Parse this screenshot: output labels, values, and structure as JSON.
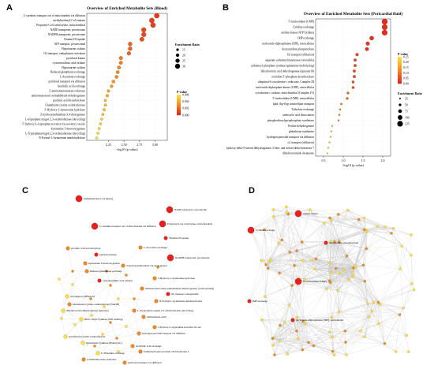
{
  "panels": {
    "a": "A",
    "b": "B",
    "c": "C",
    "d": "D"
  },
  "colors": {
    "high": "#ffe135",
    "mid": "#f08a1c",
    "low": "#e8201e",
    "edge": "#bfbfbf"
  },
  "chart_data": [
    {
      "type": "scatter",
      "panel": "A",
      "title": "Overview of Enriched Metabolite Sets (Blood)",
      "xlabel": "-log10 (p value)",
      "xlim": [
        1.9,
        3.2
      ],
      "xticks": [
        "2.25",
        "2.50",
        "2.75",
        "3.00"
      ],
      "xtick_values": [
        2.25,
        2.5,
        2.75,
        3.0
      ],
      "legend_size_title": "Enrichment Ratio",
      "legend_size_labels": [
        "15",
        "20",
        "25",
        "30"
      ],
      "legend_size_values": [
        15,
        20,
        25,
        30
      ],
      "legend_color_title": "P-value",
      "legend_color_labels": [
        "0.006",
        "0.004",
        "0.002",
        "0.000"
      ],
      "legend_placement": "right",
      "points": [
        {
          "label": "L-carnitine transport out of mitochondria via diffusion",
          "x": 3.03,
          "ratio": 32,
          "p": 0.0009
        },
        {
          "label": "methylmalonyl-CoA mutase",
          "x": 2.95,
          "ratio": 30,
          "p": 0.0011
        },
        {
          "label": "Propionyl-CoA carboxylase, mitochondrial",
          "x": 2.97,
          "ratio": 30,
          "p": 0.0011
        },
        {
          "label": "NADP transporter, peroxisome",
          "x": 2.82,
          "ratio": 28,
          "p": 0.0015
        },
        {
          "label": "NADPH transporter, peroxisome",
          "x": 2.82,
          "ratio": 28,
          "p": 0.0015
        },
        {
          "label": "Vitamin D3 uptake",
          "x": 2.79,
          "ratio": 26,
          "p": 0.0016
        },
        {
          "label": "ATP transport, peroxisomal",
          "x": 2.6,
          "ratio": 24,
          "p": 0.0025
        },
        {
          "label": "Hypotaurine oxidase",
          "x": 2.6,
          "ratio": 24,
          "p": 0.0025
        },
        {
          "label": "O2 transport, endoplasmic reticulum",
          "x": 2.58,
          "ratio": 23,
          "p": 0.0026
        },
        {
          "label": "pyridoxal kinase",
          "x": 2.45,
          "ratio": 22,
          "p": 0.0035
        },
        {
          "label": "cysteinesulfinic acid oxidase",
          "x": 2.45,
          "ratio": 21,
          "p": 0.0035
        },
        {
          "label": "Hypotaurine oxidase",
          "x": 2.42,
          "ratio": 21,
          "p": 0.0038
        },
        {
          "label": "Reduced glutathione exchange",
          "x": 2.4,
          "ratio": 20,
          "p": 0.004
        },
        {
          "label": "L-Ascorbate exchange",
          "x": 2.38,
          "ratio": 20,
          "p": 0.0042
        },
        {
          "label": "pyridoxal transport via diffusion",
          "x": 2.33,
          "ratio": 19,
          "p": 0.0047
        },
        {
          "label": "Arachidic acid exchange",
          "x": 2.3,
          "ratio": 18,
          "p": 0.005
        },
        {
          "label": "2'-aminomonomonate reductase",
          "x": 2.25,
          "ratio": 17,
          "p": 0.0056
        },
        {
          "label": "aminomonosonic-semialdehyde dehydrogenase",
          "x": 2.23,
          "ratio": 17,
          "p": 0.0058
        },
        {
          "label": "picolinic acid decarboxylase",
          "x": 2.2,
          "ratio": 16,
          "p": 0.0062
        },
        {
          "label": "Glutathione:cystine oxidoreductase",
          "x": 2.2,
          "ratio": 16,
          "p": 0.0062
        },
        {
          "label": "3'-Hydroxy-L-kynurenine hydrolase",
          "x": 2.18,
          "ratio": 16,
          "p": 0.0065
        },
        {
          "label": "3'-hydroxyanthranilate 3,4-dioxygenase",
          "x": 2.16,
          "ratio": 16,
          "p": 0.0068
        },
        {
          "label": "L-tryptophan:oxygen 2,3-oxidoreductase (decycling)",
          "x": 2.14,
          "ratio": 15,
          "p": 0.007
        },
        {
          "label": "5'-hydroxy-L-tryptophan secretion via secretory vesicle",
          "x": 2.12,
          "ratio": 15,
          "p": 0.0072
        },
        {
          "label": "kynurenine 3-monooxygenase",
          "x": 2.1,
          "ratio": 15,
          "p": 0.0075
        },
        {
          "label": "L-Tryptophanoxygen 2,3-oxidoreductase (decycling)",
          "x": 2.08,
          "ratio": 15,
          "p": 0.0078
        },
        {
          "label": "N-Formyl-L-kynurenine amidohydrolase",
          "x": 2.06,
          "ratio": 15,
          "p": 0.008
        }
      ]
    },
    {
      "type": "scatter",
      "panel": "B",
      "title": "Overview of Enriched Metabolite Sets (Pericardial fluid)",
      "xlabel": "-log10 (p value)",
      "xlim": [
        0.3,
        2.2
      ],
      "xticks": [
        "0.5",
        "1.0",
        "1.5",
        "2.0"
      ],
      "xtick_values": [
        0.5,
        1.0,
        1.5,
        2.0
      ],
      "legend_color_title": "P-value",
      "legend_color_labels": [
        "0.25",
        "0.20",
        "0.15",
        "0.10",
        "0.05",
        "0.00"
      ],
      "legend_size_title": "Enrichment Ratio",
      "legend_size_labels": [
        "25",
        "50",
        "75",
        "100",
        "125"
      ],
      "legend_size_values": [
        25,
        50,
        75,
        100,
        125
      ],
      "legend_placement": "right",
      "points": [
        {
          "label": "5'-nucleotidase (CMP)",
          "x": 2.05,
          "ratio": 125,
          "p": 0.009
        },
        {
          "label": "Cytidine exchange",
          "x": 2.05,
          "ratio": 120,
          "p": 0.009
        },
        {
          "label": "uridine kinase (ATP:Uridine)",
          "x": 2.05,
          "ratio": 120,
          "p": 0.009
        },
        {
          "label": "IMP exchange",
          "x": 1.72,
          "ratio": 90,
          "p": 0.02
        },
        {
          "label": "nucleoside-diphosphatase (IDP), extracellular",
          "x": 1.62,
          "ratio": 80,
          "p": 0.024
        },
        {
          "label": "deoxyuridine phosphorylase",
          "x": 1.6,
          "ratio": 75,
          "p": 0.025
        },
        {
          "label": "O2 transport (diffusion)",
          "x": 1.35,
          "ratio": 60,
          "p": 0.045
        },
        {
          "label": "aspartate carbamoyltransferase (reversible)",
          "x": 1.3,
          "ratio": 55,
          "p": 0.05
        },
        {
          "label": "carbamoyl-phosphate synthase (glutamine-hydrolysing)",
          "x": 1.3,
          "ratio": 55,
          "p": 0.05
        },
        {
          "label": "dihydroorotic acid dehydrogenase (quinone10)",
          "x": 1.28,
          "ratio": 55,
          "p": 0.052
        },
        {
          "label": "orotidine-5'-phosphate decarboxylase",
          "x": 1.28,
          "ratio": 55,
          "p": 0.052
        },
        {
          "label": "ubiquinol-6 cytochrome c reductase, Complex III",
          "x": 1.25,
          "ratio": 50,
          "p": 0.056
        },
        {
          "label": "nucleoside diphosphate kinase (UDP), extracellular",
          "x": 1.25,
          "ratio": 50,
          "p": 0.056
        },
        {
          "label": "cytochrome c oxidase, mitochondrial (Complex IV)",
          "x": 1.12,
          "ratio": 45,
          "p": 0.076
        },
        {
          "label": "5'-nucleotidase (UMP), extracellular",
          "x": 1.1,
          "ratio": 45,
          "p": 0.079
        },
        {
          "label": "lipid, flip-flop intracellular transport",
          "x": 0.95,
          "ratio": 35,
          "p": 0.11
        },
        {
          "label": "Trehalose exchange",
          "x": 0.92,
          "ratio": 32,
          "p": 0.12
        },
        {
          "label": "carboxylic acid dissociation",
          "x": 0.9,
          "ratio": 30,
          "p": 0.126
        },
        {
          "label": "phosphoribosylpyrophosphate synthetase",
          "x": 0.88,
          "ratio": 30,
          "p": 0.13
        },
        {
          "label": "Proline dehydrogenase",
          "x": 0.72,
          "ratio": 25,
          "p": 0.19
        },
        {
          "label": "glutathione synthetase",
          "x": 0.7,
          "ratio": 25,
          "p": 0.2
        },
        {
          "label": "hydrogen peroxide transport via diffusion",
          "x": 0.68,
          "ratio": 25,
          "p": 0.21
        },
        {
          "label": "o2 transport (diffusion)",
          "x": 0.65,
          "ratio": 22,
          "p": 0.22
        },
        {
          "label": "hydroxy-delta-5-steroid dehydrogenase, 3 beta- and steroid delta-isomerase 7",
          "x": 0.62,
          "ratio": 22,
          "p": 0.24
        },
        {
          "label": "dihydroceramide desaturase",
          "x": 0.6,
          "ratio": 20,
          "p": 0.25
        }
      ]
    },
    {
      "type": "network",
      "panel": "C",
      "nodes": [
        {
          "label": "methylmalonyl-CoA mutase",
          "c": "low",
          "big": true
        },
        {
          "label": "NADP transporter, peroxisome",
          "c": "low",
          "big": true
        },
        {
          "label": "Propionyl-CoA carboxylase, mitochondrial",
          "c": "low",
          "big": true
        },
        {
          "label": "L-carnitine transport out of mitochondria via diffusion",
          "c": "low",
          "big": true
        },
        {
          "label": "Vitamin D3 uptake",
          "c": "low",
          "big": false
        },
        {
          "label": "picolinic acid decarboxylase",
          "c": "mid",
          "big": false
        },
        {
          "label": "L-Ascorbate exchange",
          "c": "mid",
          "big": false
        },
        {
          "label": "pyridoxal kinase",
          "c": "low",
          "big": false
        },
        {
          "label": "NADPH transporter, peroxisome",
          "c": "low",
          "big": true
        },
        {
          "label": "kynurenine 3-monooxygenase",
          "c": "mid",
          "big": false
        },
        {
          "label": "3-hydroxyanthranilate 3,4-dioxygenase",
          "c": "mid",
          "big": false
        },
        {
          "label": "Reduced glutathione exchange",
          "c": "mid",
          "big": false
        },
        {
          "label": "3-Hydroxy-L-kynurenine hydrolase",
          "c": "mid",
          "big": false
        },
        {
          "label": "cysteinesulfinic acid oxidase",
          "c": "low",
          "big": false
        },
        {
          "label": "aminomo-muconate semialdehyde dehydrogenase (carboxylating)",
          "c": "mid",
          "big": false
        },
        {
          "label": "O2 transport, endoplasmic",
          "c": "low",
          "big": false
        },
        {
          "label": "o2 transport (diffusion)",
          "c": "high",
          "big": false
        },
        {
          "label": "Glutathione:cystine oxidoreductase (NADH)",
          "c": "mid",
          "big": false
        },
        {
          "label": "N-Formyl-L-kynurenine amidohydrolase",
          "c": "mid",
          "big": false
        },
        {
          "label": "dihydroorotate dehydrogenase (quinone)",
          "c": "high",
          "big": false
        },
        {
          "label": "L-Tryptophan:oxygen 2,3-oxidoreductase (decycling)",
          "c": "mid",
          "big": false
        },
        {
          "label": "aminomutate-semi",
          "c": "mid",
          "big": false
        },
        {
          "label": "Nitric Oxide Synthase (NO forming)",
          "c": "high",
          "big": false
        },
        {
          "label": "5-hydroxy-L-tryptophan secretion via sec",
          "c": "mid",
          "big": false
        },
        {
          "label": "hydrogen peroxide transport via diffusion",
          "c": "mid",
          "big": false
        },
        {
          "label": "Glutathione:cystine oxidoreductase",
          "c": "high",
          "big": false
        },
        {
          "label": "Quinolinate Synthase (Eukaryotic)",
          "c": "high",
          "big": false
        },
        {
          "label": "Arachidic acid exchange",
          "c": "mid",
          "big": false
        },
        {
          "label": "L-Threonine exchange",
          "c": "high",
          "big": false
        },
        {
          "label": "Iodide:hydrogen peroxide oxidoreductase 4",
          "c": "mid",
          "big": false
        },
        {
          "label": "2-aminomuconate reductase",
          "c": "mid",
          "big": false
        },
        {
          "label": "pyridoxal transport via diffusion",
          "c": "mid",
          "big": false
        }
      ]
    },
    {
      "type": "network",
      "panel": "D",
      "nodes": [
        {
          "label": "uridine kinase",
          "c": "low",
          "big": true
        },
        {
          "label": "Cytidine exchange",
          "c": "low",
          "big": true
        },
        {
          "label": "deoxyuridine phosphorylase",
          "c": "low",
          "big": false
        },
        {
          "label": "5'-nucleotidase (CMP)",
          "c": "low",
          "big": true
        },
        {
          "label": "IMP exchange",
          "c": "low",
          "big": false
        },
        {
          "label": "nucleoside-diphosphatase (IDP), extracellular",
          "c": "low",
          "big": false
        }
      ]
    }
  ]
}
